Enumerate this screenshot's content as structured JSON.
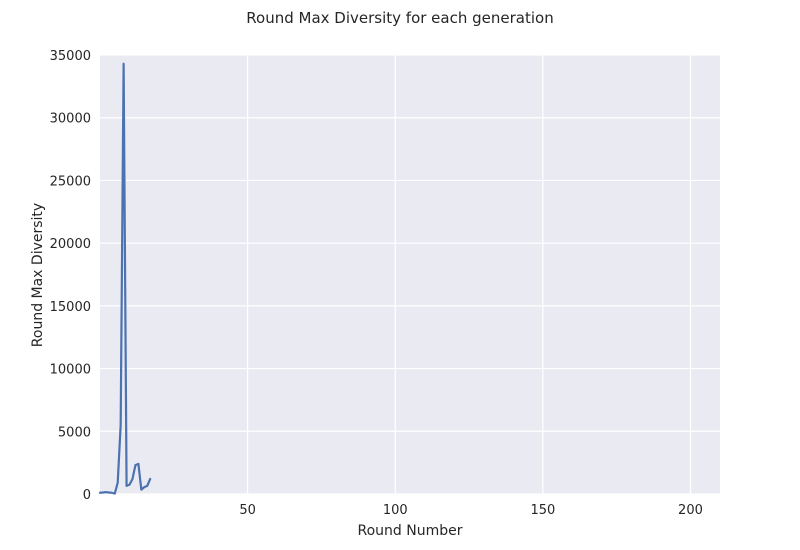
{
  "chart_data": {
    "type": "line",
    "title": "Round Max Diversity for each generation",
    "xlabel": "Round Number",
    "ylabel": "Round Max Diversity",
    "xlim": [
      0,
      210
    ],
    "ylim": [
      0,
      35000
    ],
    "x_ticks": [
      {
        "value": 50,
        "label": "50"
      },
      {
        "value": 100,
        "label": "100"
      },
      {
        "value": 150,
        "label": "150"
      },
      {
        "value": 200,
        "label": "200"
      }
    ],
    "y_ticks": [
      {
        "value": 0,
        "label": "0"
      },
      {
        "value": 5000,
        "label": "5000"
      },
      {
        "value": 10000,
        "label": "10000"
      },
      {
        "value": 15000,
        "label": "15000"
      },
      {
        "value": 20000,
        "label": "20000"
      },
      {
        "value": 25000,
        "label": "25000"
      },
      {
        "value": 30000,
        "label": "30000"
      },
      {
        "value": 35000,
        "label": "35000"
      }
    ],
    "grid": true,
    "background": "#eaeaf2",
    "series": [
      {
        "color": "#4c72b0",
        "points": [
          [
            0,
            100
          ],
          [
            1,
            120
          ],
          [
            2,
            150
          ],
          [
            3,
            120
          ],
          [
            4,
            100
          ],
          [
            5,
            30
          ],
          [
            6,
            900
          ],
          [
            7,
            5500
          ],
          [
            8,
            34300
          ],
          [
            9,
            650
          ],
          [
            10,
            750
          ],
          [
            11,
            1200
          ],
          [
            12,
            2300
          ],
          [
            13,
            2400
          ],
          [
            14,
            350
          ],
          [
            15,
            550
          ],
          [
            16,
            650
          ],
          [
            17,
            1200
          ]
        ]
      }
    ]
  }
}
